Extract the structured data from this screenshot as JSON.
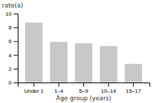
{
  "chart_data": {
    "type": "bar",
    "categories": [
      "Under 1",
      "1–4",
      "5–9",
      "10–14",
      "15–17"
    ],
    "values": [
      8.7,
      5.9,
      5.7,
      5.3,
      2.7
    ],
    "color": "#c8c8c8",
    "xlabel": "Age group (years)",
    "ylabel": "rate(a)",
    "ylim": [
      0,
      10
    ],
    "yticks": [
      0,
      2,
      4,
      6,
      8,
      10
    ]
  }
}
